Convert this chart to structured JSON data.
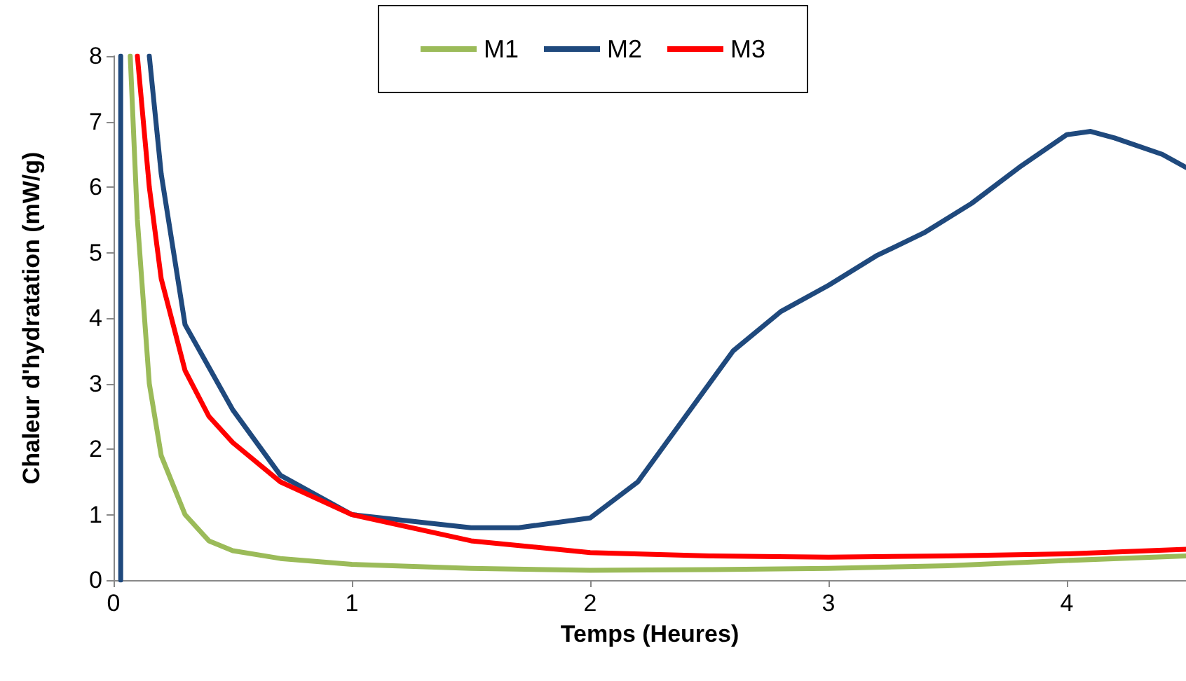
{
  "chart_data": {
    "type": "line",
    "xlabel": "Temps (Heures)",
    "ylabel": "Chaleur d'hydratation (mW/g)",
    "xlim": [
      0,
      4.5
    ],
    "xticks": [
      0,
      1,
      2,
      3,
      4
    ],
    "ylim": [
      0,
      8
    ],
    "yticks": [
      0,
      1,
      2,
      3,
      4,
      5,
      6,
      7,
      8
    ],
    "grid": false,
    "legend": "top",
    "marker": "none",
    "line_style": "solid",
    "series": [
      {
        "name": "M1",
        "color": "#9bbb59",
        "x": [
          0.07,
          0.1,
          0.15,
          0.2,
          0.3,
          0.4,
          0.5,
          0.7,
          1,
          1.5,
          2,
          2.5,
          3,
          3.5,
          4,
          4.5
        ],
        "values": [
          8,
          5.5,
          3.0,
          1.9,
          1.0,
          0.6,
          0.45,
          0.33,
          0.24,
          0.18,
          0.15,
          0.16,
          0.18,
          0.22,
          0.3,
          0.37
        ]
      },
      {
        "name": "M2",
        "color": "#1f497d",
        "x": [
          0.03,
          0.03,
          null,
          0.15,
          0.2,
          0.3,
          0.5,
          0.7,
          1,
          1.5,
          1.7,
          2,
          2.2,
          2.4,
          2.6,
          2.8,
          3,
          3.2,
          3.4,
          3.6,
          3.8,
          4,
          4.1,
          4.2,
          4.4,
          4.5
        ],
        "values": [
          0,
          8,
          null,
          8,
          6.2,
          3.9,
          2.6,
          1.6,
          1.0,
          0.8,
          0.8,
          0.95,
          1.5,
          2.5,
          3.5,
          4.1,
          4.5,
          4.95,
          5.3,
          5.75,
          6.3,
          6.8,
          6.85,
          6.75,
          6.5,
          6.3
        ]
      },
      {
        "name": "M3",
        "color": "#ff0000",
        "x": [
          0.1,
          0.15,
          0.2,
          0.3,
          0.4,
          0.5,
          0.7,
          1,
          1.5,
          2,
          2.5,
          3,
          3.5,
          4,
          4.5
        ],
        "values": [
          8,
          6.0,
          4.6,
          3.2,
          2.5,
          2.1,
          1.5,
          1.0,
          0.6,
          0.42,
          0.37,
          0.35,
          0.37,
          0.4,
          0.47
        ]
      }
    ]
  }
}
